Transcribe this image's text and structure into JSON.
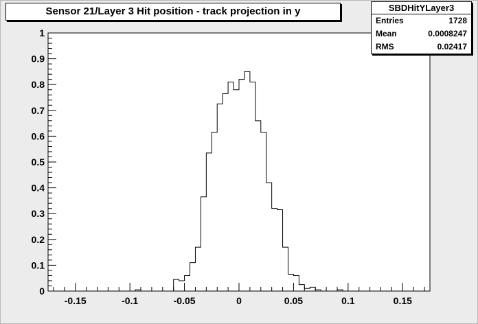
{
  "title": "Sensor 21/Layer 3 Hit position - track projection in y",
  "stats": {
    "name": "SBDHitYLayer3",
    "rows": [
      {
        "label": "Entries",
        "value": "1728"
      },
      {
        "label": "Mean",
        "value": "0.0008247"
      },
      {
        "label": "RMS",
        "value": "0.02417"
      }
    ]
  },
  "chart_data": {
    "type": "histogram",
    "title": "Sensor 21/Layer 3 Hit position - track projection in y",
    "xlabel": "",
    "ylabel": "",
    "xlim": [
      -0.175,
      0.175
    ],
    "ylim": [
      0,
      1
    ],
    "bin_width": 0.005,
    "x_ticks": [
      -0.15,
      -0.1,
      -0.05,
      0,
      0.05,
      0.1,
      0.15
    ],
    "x_tick_labels": [
      "-0.15",
      "-0.1",
      "-0.05",
      "0",
      "0.05",
      "0.1",
      "0.15"
    ],
    "y_ticks": [
      0,
      0.1,
      0.2,
      0.3,
      0.4,
      0.5,
      0.6,
      0.7,
      0.8,
      0.9,
      1
    ],
    "y_tick_labels": [
      "0",
      "0.1",
      "0.2",
      "0.3",
      "0.4",
      "0.5",
      "0.6",
      "0.7",
      "0.8",
      "0.9",
      "1"
    ],
    "bin_edges_start": -0.175,
    "values": [
      0,
      0,
      0,
      0,
      0,
      0,
      0,
      0,
      0,
      0,
      0,
      0,
      0,
      0,
      0,
      0,
      0.005,
      0,
      0,
      0,
      0,
      0,
      0,
      0.045,
      0.04,
      0.06,
      0.11,
      0.17,
      0.365,
      0.535,
      0.615,
      0.725,
      0.765,
      0.81,
      0.78,
      0.82,
      0.85,
      0.81,
      0.66,
      0.615,
      0.42,
      0.32,
      0.315,
      0.17,
      0.065,
      0.06,
      0.025,
      0.01,
      0.015,
      0.005,
      0,
      0,
      0,
      0.005,
      0,
      0,
      0,
      0,
      0,
      0,
      0,
      0,
      0,
      0,
      0,
      0,
      0,
      0,
      0,
      0
    ],
    "grid": false,
    "legend": "top-right stats box"
  }
}
